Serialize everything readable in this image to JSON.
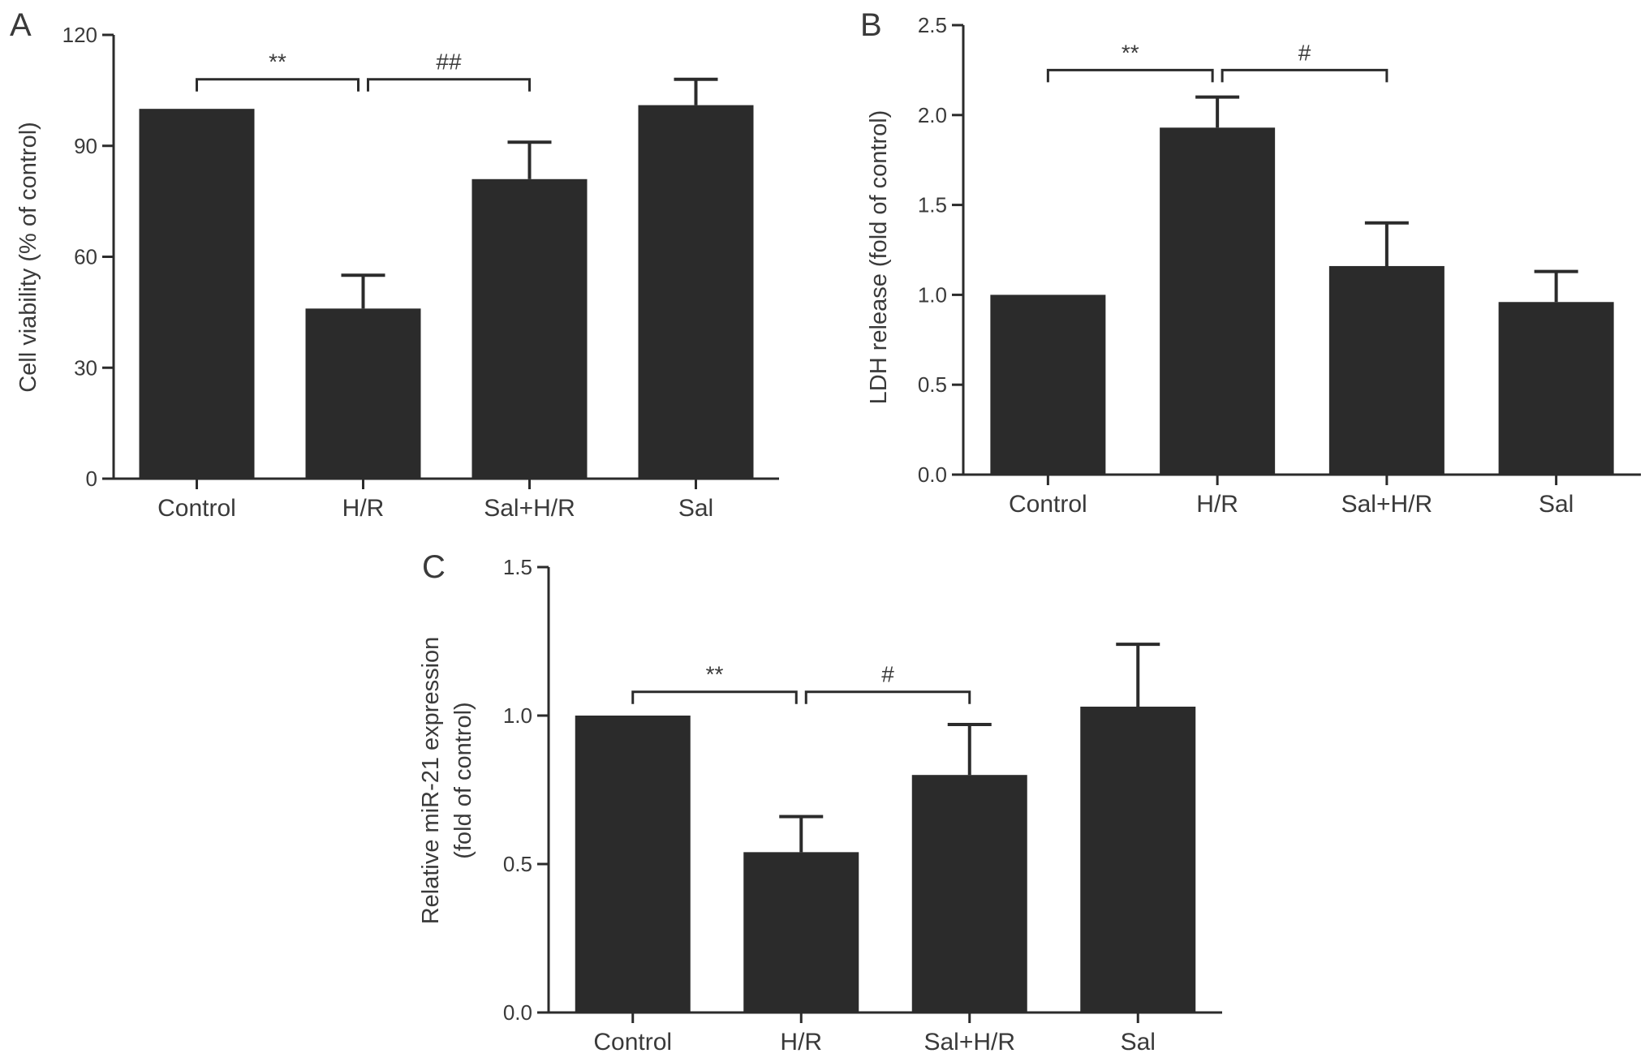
{
  "chart_data": [
    {
      "type": "bar",
      "panel": "A",
      "categories": [
        "Control",
        "H/R",
        "Sal+H/R",
        "Sal"
      ],
      "values": [
        100,
        46,
        81,
        101
      ],
      "errors": [
        0,
        9,
        10,
        7
      ],
      "ylabel": "Cell viability (% of control)",
      "ylim": [
        0,
        120
      ],
      "yticks": [
        "0",
        "30",
        "60",
        "90",
        "120"
      ],
      "bar_color": "#2b2b2b",
      "brackets": [
        {
          "from": 0,
          "to": 1,
          "label": "**",
          "y": 108
        },
        {
          "from": 1,
          "to": 2,
          "label": "##",
          "y": 108
        }
      ]
    },
    {
      "type": "bar",
      "panel": "B",
      "categories": [
        "Control",
        "H/R",
        "Sal+H/R",
        "Sal"
      ],
      "values": [
        1.0,
        1.93,
        1.16,
        0.96
      ],
      "errors": [
        0,
        0.17,
        0.24,
        0.17
      ],
      "ylabel": "LDH release (fold of control)",
      "ylim": [
        0,
        2.5
      ],
      "yticks": [
        "0.0",
        "0.5",
        "1.0",
        "1.5",
        "2.0",
        "2.5"
      ],
      "bar_color": "#2b2b2b",
      "brackets": [
        {
          "from": 0,
          "to": 1,
          "label": "**",
          "y": 2.25
        },
        {
          "from": 1,
          "to": 2,
          "label": "#",
          "y": 2.25
        }
      ]
    },
    {
      "type": "bar",
      "panel": "C",
      "categories": [
        "Control",
        "H/R",
        "Sal+H/R",
        "Sal"
      ],
      "values": [
        1.0,
        0.54,
        0.8,
        1.03
      ],
      "errors": [
        0,
        0.12,
        0.17,
        0.21
      ],
      "ylabel_lines": [
        "Relative miR-21 expression",
        "(fold of control)"
      ],
      "ylim": [
        0,
        1.5
      ],
      "yticks": [
        "0.0",
        "0.5",
        "1.0",
        "1.5"
      ],
      "bar_color": "#2b2b2b",
      "brackets": [
        {
          "from": 0,
          "to": 1,
          "label": "**",
          "y": 1.08
        },
        {
          "from": 1,
          "to": 2,
          "label": "#",
          "y": 1.08
        }
      ]
    }
  ]
}
